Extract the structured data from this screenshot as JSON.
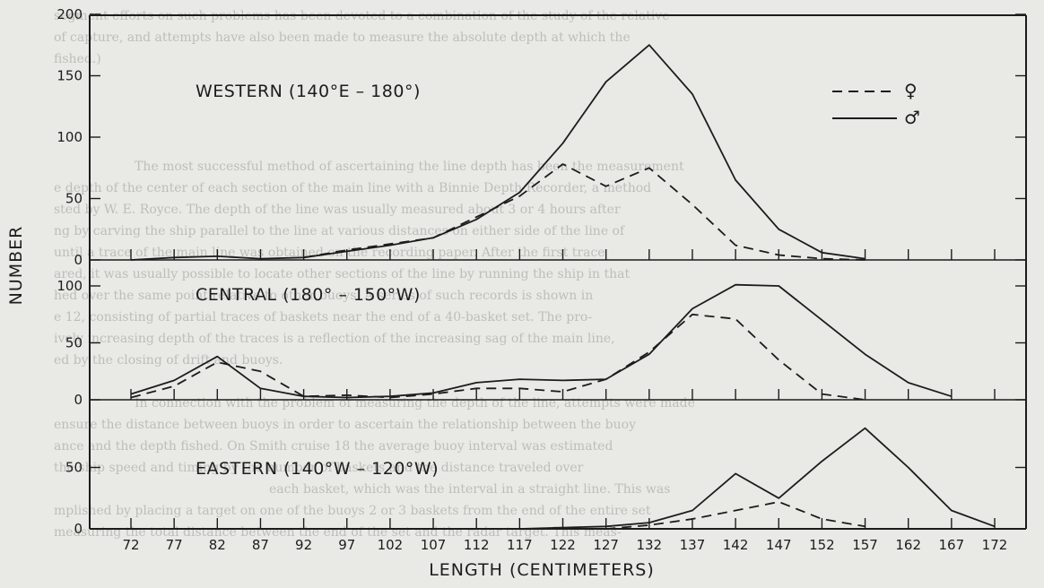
{
  "chart_data": {
    "type": "line",
    "xlabel": "LENGTH (CENTIMETERS)",
    "ylabel": "NUMBER",
    "x": [
      72,
      77,
      82,
      87,
      92,
      97,
      102,
      107,
      112,
      117,
      122,
      127,
      132,
      137,
      142,
      147,
      152,
      157,
      162,
      167,
      172
    ],
    "x_ticks": [
      "72",
      "77",
      "82",
      "87",
      "92",
      "97",
      "102",
      "107",
      "112",
      "117",
      "122",
      "127",
      "132",
      "137",
      "142",
      "147",
      "152",
      "157",
      "162",
      "167",
      "172"
    ],
    "legend": [
      {
        "symbol": "♀",
        "style": "dashed"
      },
      {
        "symbol": "♂",
        "style": "solid"
      }
    ],
    "legend_placement": "top-right",
    "panels": [
      {
        "title": "WESTERN (140°E – 180°)",
        "ylim": [
          0,
          200
        ],
        "y_ticks": [
          "0",
          "50",
          "100",
          "150",
          "200"
        ],
        "series": [
          {
            "symbol": "♀",
            "style": "dashed",
            "x": [
              92,
              97,
              102,
              107,
              112,
              117,
              122,
              127,
              132,
              137,
              142,
              147,
              152,
              157
            ],
            "values": [
              2,
              8,
              13,
              18,
              35,
              52,
              78,
              60,
              75,
              45,
              12,
              4,
              1,
              0
            ]
          },
          {
            "symbol": "♂",
            "style": "solid",
            "x": [
              72,
              77,
              82,
              87,
              92,
              97,
              102,
              107,
              112,
              117,
              122,
              127,
              132,
              137,
              142,
              147,
              152,
              157
            ],
            "values": [
              0,
              2,
              3,
              1,
              2,
              7,
              12,
              18,
              33,
              55,
              95,
              145,
              175,
              135,
              65,
              25,
              6,
              1
            ]
          }
        ]
      },
      {
        "title": "CENTRAL (180° – 150°W)",
        "ylim": [
          0,
          100
        ],
        "y_ticks": [
          "0",
          "50",
          "100"
        ],
        "series": [
          {
            "symbol": "♀",
            "style": "dashed",
            "x": [
              72,
              77,
              82,
              87,
              92,
              97,
              102,
              107,
              112,
              117,
              122,
              127,
              132,
              137,
              142,
              147,
              152,
              157
            ],
            "values": [
              2,
              12,
              33,
              25,
              3,
              4,
              2,
              5,
              10,
              10,
              7,
              18,
              42,
              75,
              71,
              35,
              5,
              0
            ]
          },
          {
            "symbol": "♂",
            "style": "solid",
            "x": [
              72,
              77,
              82,
              87,
              92,
              97,
              102,
              107,
              112,
              117,
              122,
              127,
              132,
              137,
              142,
              147,
              152,
              157,
              162,
              167
            ],
            "values": [
              5,
              17,
              38,
              10,
              3,
              2,
              3,
              6,
              15,
              18,
              17,
              18,
              40,
              80,
              101,
              100,
              70,
              40,
              15,
              3
            ]
          }
        ]
      },
      {
        "title": "EASTERN (140°W – 120°W)",
        "ylim": [
          0,
          100
        ],
        "y_ticks": [
          "0",
          "50"
        ],
        "series": [
          {
            "symbol": "♀",
            "style": "dashed",
            "x": [
              112,
              117,
              122,
              127,
              132,
              137,
              142,
              147,
              152,
              157
            ],
            "values": [
              0,
              0,
              0,
              0,
              3,
              8,
              15,
              22,
              8,
              2
            ]
          },
          {
            "symbol": "♂",
            "style": "solid",
            "x": [
              112,
              117,
              122,
              127,
              132,
              137,
              142,
              147,
              152,
              157,
              162,
              167,
              172
            ],
            "values": [
              0,
              0,
              1,
              2,
              5,
              15,
              45,
              25,
              55,
              82,
              50,
              15,
              2
            ]
          }
        ]
      }
    ]
  },
  "background_text": [
    "segment efforts on such problems has been devoted to a combination of the study of the relative",
    "of capture, and attempts have also been made to measure the absolute depth at which the",
    "fished.)",
    "The most successful method of ascertaining the line depth has been the measurement",
    "e depth of the center of each section of the main line with a Binnie Depth Recorder, a method",
    "sted by W. E. Royce. The depth of the line was usually measured about 3 or 4 hours after",
    "ng by carving the ship parallel to the line at various distances on either side of the line of",
    "until a trace of the main line was obtained on the recording paper. After the first trace",
    "ared, it was usually possible to locate other sections of the line by running the ship in that",
    "hed over the same point relative to other buoys. A series of such records is shown in",
    "e 12, consisting of partial traces of baskets near the end of a 40-basket set. The pro-",
    "ively increasing depth of the traces is a reflection of the increasing sag of the main line,",
    "ed by the closing of drift and buoys.",
    "In connection with the problem of measuring the depth of the line, attempts were made",
    "ensure the distance between buoys in order to ascertain the relationship between the buoy",
    "ance and the depth fished. On Smith cruise 18 the average buoy interval was estimated",
    "the ship speed and timing by the number of baskets and the distance traveled over",
    "each basket, which was the interval in a straight line. This was",
    "mplished by placing a target on one of the buoys 2 or 3 baskets from the end of the entire set",
    "measuring the total distance between the end of the set and the radar target. This meas-"
  ]
}
